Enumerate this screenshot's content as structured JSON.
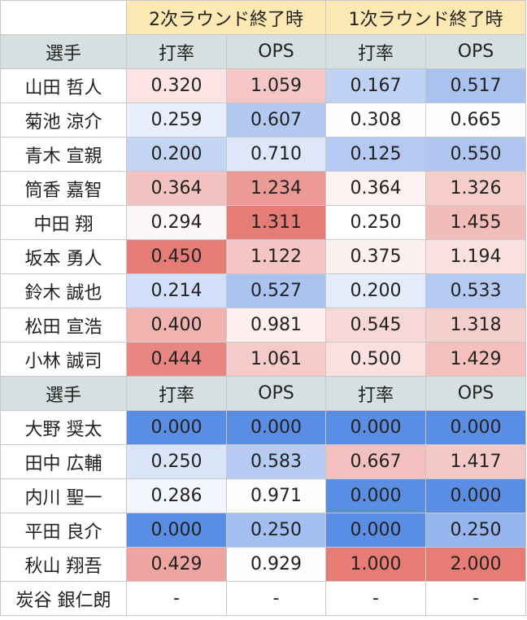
{
  "header": {
    "groups": [
      "2次ラウンド終了時",
      "1次ラウンド終了時"
    ]
  },
  "sections": [
    {
      "columns": [
        "選手",
        "打率",
        "OPS",
        "打率",
        "OPS"
      ],
      "rows": [
        {
          "cells": [
            "山田 哲人",
            "0.320",
            "1.059",
            "0.167",
            "0.517"
          ],
          "colors": [
            "#fce4e4",
            "#f4c7c6",
            "#c0d2f3",
            "#a9c2f0"
          ]
        },
        {
          "cells": [
            "菊池 涼介",
            "0.259",
            "0.607",
            "0.308",
            "0.665"
          ],
          "colors": [
            "#e8eefb",
            "#b4c9f1",
            "#fefefe",
            "#fdfdfe"
          ]
        },
        {
          "cells": [
            "青木 宣親",
            "0.200",
            "0.710",
            "0.125",
            "0.550"
          ],
          "colors": [
            "#c4d5f4",
            "#dde7f8",
            "#b5caf2",
            "#b0c6f1"
          ]
        },
        {
          "cells": [
            "筒香 嘉智",
            "0.364",
            "1.234",
            "0.364",
            "1.326"
          ],
          "colors": [
            "#f3c3c1",
            "#ec9a96",
            "#fdf1f1",
            "#f5cecc"
          ]
        },
        {
          "cells": [
            "中田 翔",
            "0.294",
            "1.311",
            "0.250",
            "1.455"
          ],
          "colors": [
            "#fdf6f6",
            "#e67c76",
            "#ffffff",
            "#f2bcb9"
          ]
        },
        {
          "cells": [
            "坂本 勇人",
            "0.450",
            "1.122",
            "0.375",
            "1.194"
          ],
          "colors": [
            "#e67c76",
            "#f4c5c3",
            "#fdf0f0",
            "#fae0df"
          ]
        },
        {
          "cells": [
            "鈴木 誠也",
            "0.214",
            "0.527",
            "0.200",
            "0.533"
          ],
          "colors": [
            "#d2defa",
            "#aac3f0",
            "#e4ebfa",
            "#b5caf2"
          ]
        },
        {
          "cells": [
            "松田 宣浩",
            "0.400",
            "0.981",
            "0.545",
            "1.318"
          ],
          "colors": [
            "#f0b3b0",
            "#fcefee",
            "#f8d8d6",
            "#f5cfcd"
          ]
        },
        {
          "cells": [
            "小林 誠司",
            "0.444",
            "1.061",
            "0.500",
            "1.429"
          ],
          "colors": [
            "#e88781",
            "#f5cbc9",
            "#fae0df",
            "#f3c0bd"
          ]
        }
      ]
    },
    {
      "columns": [
        "選手",
        "打率",
        "OPS",
        "打率",
        "OPS"
      ],
      "rows": [
        {
          "cells": [
            "大野 奨太",
            "0.000",
            "0.000",
            "0.000",
            "0.000"
          ],
          "colors": [
            "#5a8de4",
            "#5a8de4",
            "#5a8de4",
            "#5a8de4"
          ]
        },
        {
          "cells": [
            "田中 広輔",
            "0.250",
            "0.583",
            "0.667",
            "1.417"
          ],
          "colors": [
            "#dae5f8",
            "#b6cbf2",
            "#f2c1bf",
            "#f4c8c6"
          ]
        },
        {
          "cells": [
            "内川 聖一",
            "0.286",
            "0.971",
            "0.000",
            "0.000"
          ],
          "colors": [
            "#f3f6fd",
            "#fdfbfb",
            "#5a8de4",
            "#5a8de4"
          ]
        },
        {
          "cells": [
            "平田 良介",
            "0.000",
            "0.250",
            "0.000",
            "0.250"
          ],
          "colors": [
            "#5a8de4",
            "#a3bef0",
            "#5a8de4",
            "#97b5ee"
          ]
        },
        {
          "cells": [
            "秋山 翔吾",
            "0.429",
            "0.929",
            "1.000",
            "2.000"
          ],
          "colors": [
            "#eea4a0",
            "#fdfdfd",
            "#e67c73",
            "#e67c73"
          ]
        },
        {
          "cells": [
            "炭谷 銀仁朗",
            "-",
            "-",
            "-",
            "-"
          ],
          "colors": [
            "#ffffff",
            "#ffffff",
            "#ffffff",
            "#ffffff"
          ]
        }
      ]
    }
  ]
}
